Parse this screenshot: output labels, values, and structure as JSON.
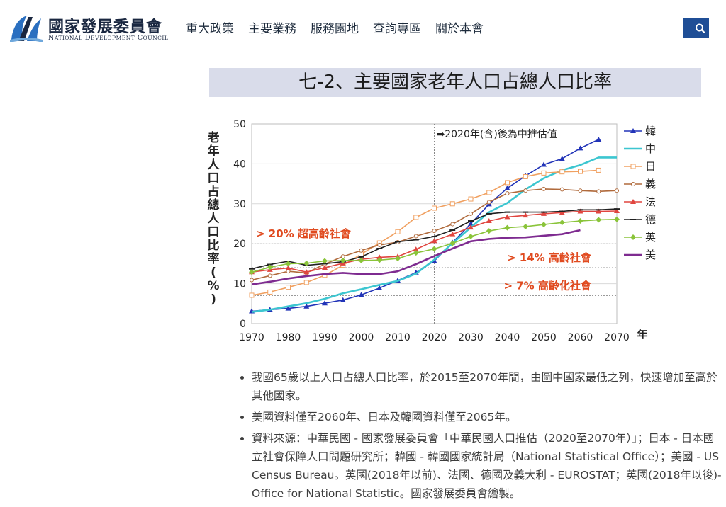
{
  "header": {
    "logo": {
      "zh": "國家發展委員會",
      "en": "National Development Council"
    },
    "nav": [
      "重大政策",
      "主要業務",
      "服務園地",
      "查詢專區",
      "關於本會"
    ],
    "search": {
      "placeholder": "",
      "button_icon": "search-icon"
    }
  },
  "section_title": "七-2、主要國家老年人口占總人口比率",
  "chart_data": {
    "type": "line",
    "title": "",
    "ylabel": "老年人口占總人口比率(%)",
    "xlabel": "年",
    "xlim": [
      1970,
      2070
    ],
    "ylim": [
      0,
      50
    ],
    "x_ticks": [
      1970,
      1980,
      1990,
      2000,
      2010,
      2020,
      2030,
      2040,
      2050,
      2060,
      2070
    ],
    "y_ticks": [
      0,
      10,
      20,
      30,
      40,
      50
    ],
    "grid": true,
    "legend_position": "right",
    "divider": {
      "x": 2020,
      "label": "➡2020年(含)後為中推估值"
    },
    "thresholds": [
      {
        "y": 20,
        "label": "> 20% 超高齡社會",
        "label_side": "left"
      },
      {
        "y": 14,
        "label": "> 14% 高齡社會",
        "label_side": "right"
      },
      {
        "y": 7,
        "label": "> 7% 高齡化社會",
        "label_side": "right"
      }
    ],
    "series": [
      {
        "name": "韓國",
        "color": "#2234b8",
        "marker": "triangle",
        "points": [
          [
            1970,
            3.1
          ],
          [
            1975,
            3.5
          ],
          [
            1980,
            3.8
          ],
          [
            1985,
            4.3
          ],
          [
            1990,
            5.1
          ],
          [
            1995,
            5.9
          ],
          [
            2000,
            7.2
          ],
          [
            2005,
            8.9
          ],
          [
            2010,
            10.8
          ],
          [
            2015,
            12.8
          ],
          [
            2020,
            15.7
          ],
          [
            2025,
            20.3
          ],
          [
            2030,
            25.0
          ],
          [
            2035,
            29.9
          ],
          [
            2040,
            33.9
          ],
          [
            2045,
            37.0
          ],
          [
            2050,
            39.8
          ],
          [
            2055,
            41.3
          ],
          [
            2060,
            43.9
          ],
          [
            2065,
            46.1
          ]
        ]
      },
      {
        "name": "中華民國",
        "color": "#3cc6d0",
        "marker": "none",
        "points": [
          [
            1970,
            2.9
          ],
          [
            1975,
            3.5
          ],
          [
            1980,
            4.3
          ],
          [
            1985,
            5.1
          ],
          [
            1990,
            6.2
          ],
          [
            1995,
            7.6
          ],
          [
            2000,
            8.6
          ],
          [
            2005,
            9.7
          ],
          [
            2010,
            10.7
          ],
          [
            2015,
            12.5
          ],
          [
            2020,
            16.0
          ],
          [
            2025,
            20.1
          ],
          [
            2030,
            24.1
          ],
          [
            2035,
            27.9
          ],
          [
            2040,
            30.2
          ],
          [
            2045,
            33.6
          ],
          [
            2050,
            36.4
          ],
          [
            2055,
            38.4
          ],
          [
            2060,
            39.7
          ],
          [
            2065,
            41.6
          ],
          [
            2070,
            41.6
          ]
        ]
      },
      {
        "name": "日本",
        "color": "#f0a060",
        "marker": "square",
        "points": [
          [
            1970,
            7.1
          ],
          [
            1975,
            7.9
          ],
          [
            1980,
            9.1
          ],
          [
            1985,
            10.3
          ],
          [
            1990,
            12.1
          ],
          [
            1995,
            14.6
          ],
          [
            2000,
            17.4
          ],
          [
            2005,
            20.2
          ],
          [
            2010,
            23.0
          ],
          [
            2015,
            26.6
          ],
          [
            2020,
            28.9
          ],
          [
            2025,
            30.0
          ],
          [
            2030,
            31.2
          ],
          [
            2035,
            32.8
          ],
          [
            2040,
            35.3
          ],
          [
            2045,
            36.8
          ],
          [
            2050,
            37.7
          ],
          [
            2055,
            38.0
          ],
          [
            2060,
            38.1
          ],
          [
            2065,
            38.4
          ]
        ]
      },
      {
        "name": "義大利",
        "color": "#b06a3c",
        "marker": "circle",
        "points": [
          [
            1970,
            10.9
          ],
          [
            1975,
            12.0
          ],
          [
            1980,
            13.1
          ],
          [
            1985,
            12.7
          ],
          [
            1990,
            14.9
          ],
          [
            1995,
            16.8
          ],
          [
            2000,
            18.3
          ],
          [
            2005,
            19.7
          ],
          [
            2010,
            20.4
          ],
          [
            2015,
            21.9
          ],
          [
            2020,
            23.2
          ],
          [
            2025,
            24.9
          ],
          [
            2030,
            27.5
          ],
          [
            2035,
            30.4
          ],
          [
            2040,
            32.6
          ],
          [
            2045,
            33.3
          ],
          [
            2050,
            33.7
          ],
          [
            2055,
            33.6
          ],
          [
            2060,
            33.3
          ],
          [
            2065,
            33.1
          ],
          [
            2070,
            33.3
          ]
        ]
      },
      {
        "name": "法國",
        "color": "#e0453f",
        "marker": "triangle",
        "points": [
          [
            1970,
            12.9
          ],
          [
            1975,
            13.5
          ],
          [
            1980,
            13.9
          ],
          [
            1985,
            12.9
          ],
          [
            1990,
            14.0
          ],
          [
            1995,
            15.1
          ],
          [
            2000,
            16.1
          ],
          [
            2005,
            16.6
          ],
          [
            2010,
            16.8
          ],
          [
            2015,
            18.6
          ],
          [
            2020,
            20.7
          ],
          [
            2025,
            22.4
          ],
          [
            2030,
            24.1
          ],
          [
            2035,
            25.7
          ],
          [
            2040,
            26.7
          ],
          [
            2045,
            27.1
          ],
          [
            2050,
            27.5
          ],
          [
            2055,
            27.8
          ],
          [
            2060,
            28.1
          ],
          [
            2065,
            28.1
          ],
          [
            2070,
            28.2
          ]
        ]
      },
      {
        "name": "德國",
        "color": "#202020",
        "marker": "dash",
        "points": [
          [
            1970,
            13.7
          ],
          [
            1975,
            14.8
          ],
          [
            1980,
            15.6
          ],
          [
            1985,
            14.6
          ],
          [
            1990,
            15.0
          ],
          [
            1995,
            15.5
          ],
          [
            2000,
            16.7
          ],
          [
            2005,
            18.8
          ],
          [
            2010,
            20.5
          ],
          [
            2015,
            21.0
          ],
          [
            2020,
            21.8
          ],
          [
            2025,
            23.4
          ],
          [
            2030,
            25.7
          ],
          [
            2035,
            27.5
          ],
          [
            2040,
            27.9
          ],
          [
            2045,
            27.9
          ],
          [
            2050,
            27.9
          ],
          [
            2055,
            28.1
          ],
          [
            2060,
            28.5
          ],
          [
            2065,
            28.5
          ],
          [
            2070,
            28.7
          ]
        ]
      },
      {
        "name": "英國",
        "color": "#8ac43a",
        "marker": "diamond",
        "points": [
          [
            1970,
            12.9
          ],
          [
            1975,
            14.1
          ],
          [
            1980,
            15.0
          ],
          [
            1985,
            15.1
          ],
          [
            1990,
            15.7
          ],
          [
            1995,
            15.8
          ],
          [
            2000,
            15.8
          ],
          [
            2005,
            15.9
          ],
          [
            2010,
            16.3
          ],
          [
            2015,
            17.7
          ],
          [
            2020,
            18.7
          ],
          [
            2025,
            20.1
          ],
          [
            2030,
            21.8
          ],
          [
            2035,
            23.2
          ],
          [
            2040,
            24.0
          ],
          [
            2045,
            24.3
          ],
          [
            2050,
            24.8
          ],
          [
            2055,
            25.3
          ],
          [
            2060,
            25.7
          ],
          [
            2065,
            26.0
          ],
          [
            2070,
            26.1
          ]
        ]
      },
      {
        "name": "美國",
        "color": "#7e2b90",
        "marker": "none",
        "points": [
          [
            1970,
            9.8
          ],
          [
            1975,
            10.5
          ],
          [
            1980,
            11.3
          ],
          [
            1985,
            11.9
          ],
          [
            1990,
            12.4
          ],
          [
            1995,
            12.7
          ],
          [
            2000,
            12.4
          ],
          [
            2005,
            12.4
          ],
          [
            2010,
            13.1
          ],
          [
            2015,
            14.9
          ],
          [
            2020,
            16.9
          ],
          [
            2025,
            18.8
          ],
          [
            2030,
            20.6
          ],
          [
            2035,
            21.2
          ],
          [
            2040,
            21.5
          ],
          [
            2045,
            21.6
          ],
          [
            2050,
            22.0
          ],
          [
            2055,
            22.4
          ],
          [
            2060,
            23.4
          ]
        ]
      }
    ]
  },
  "notes": [
    "我國65歲以上人口占總人口比率，於2015至2070年間，由圖中國家最低之列，快速增加至高於其他國家。",
    "美國資料僅至2060年、日本及韓國資料僅至2065年。",
    "資料來源：中華民國 - 國家發展委員會「中華民國人口推估（2020至2070年）」；日本 - 日本國立社會保障人口問題研究所；韓國 - 韓國國家統計局（National Statistical Office）；美國 - US Census Bureau。英國(2018年以前)、法國、德國及義大利 - EUROSTAT；英國(2018年以後)-Office for National Statistic。國家發展委員會繪製。"
  ]
}
